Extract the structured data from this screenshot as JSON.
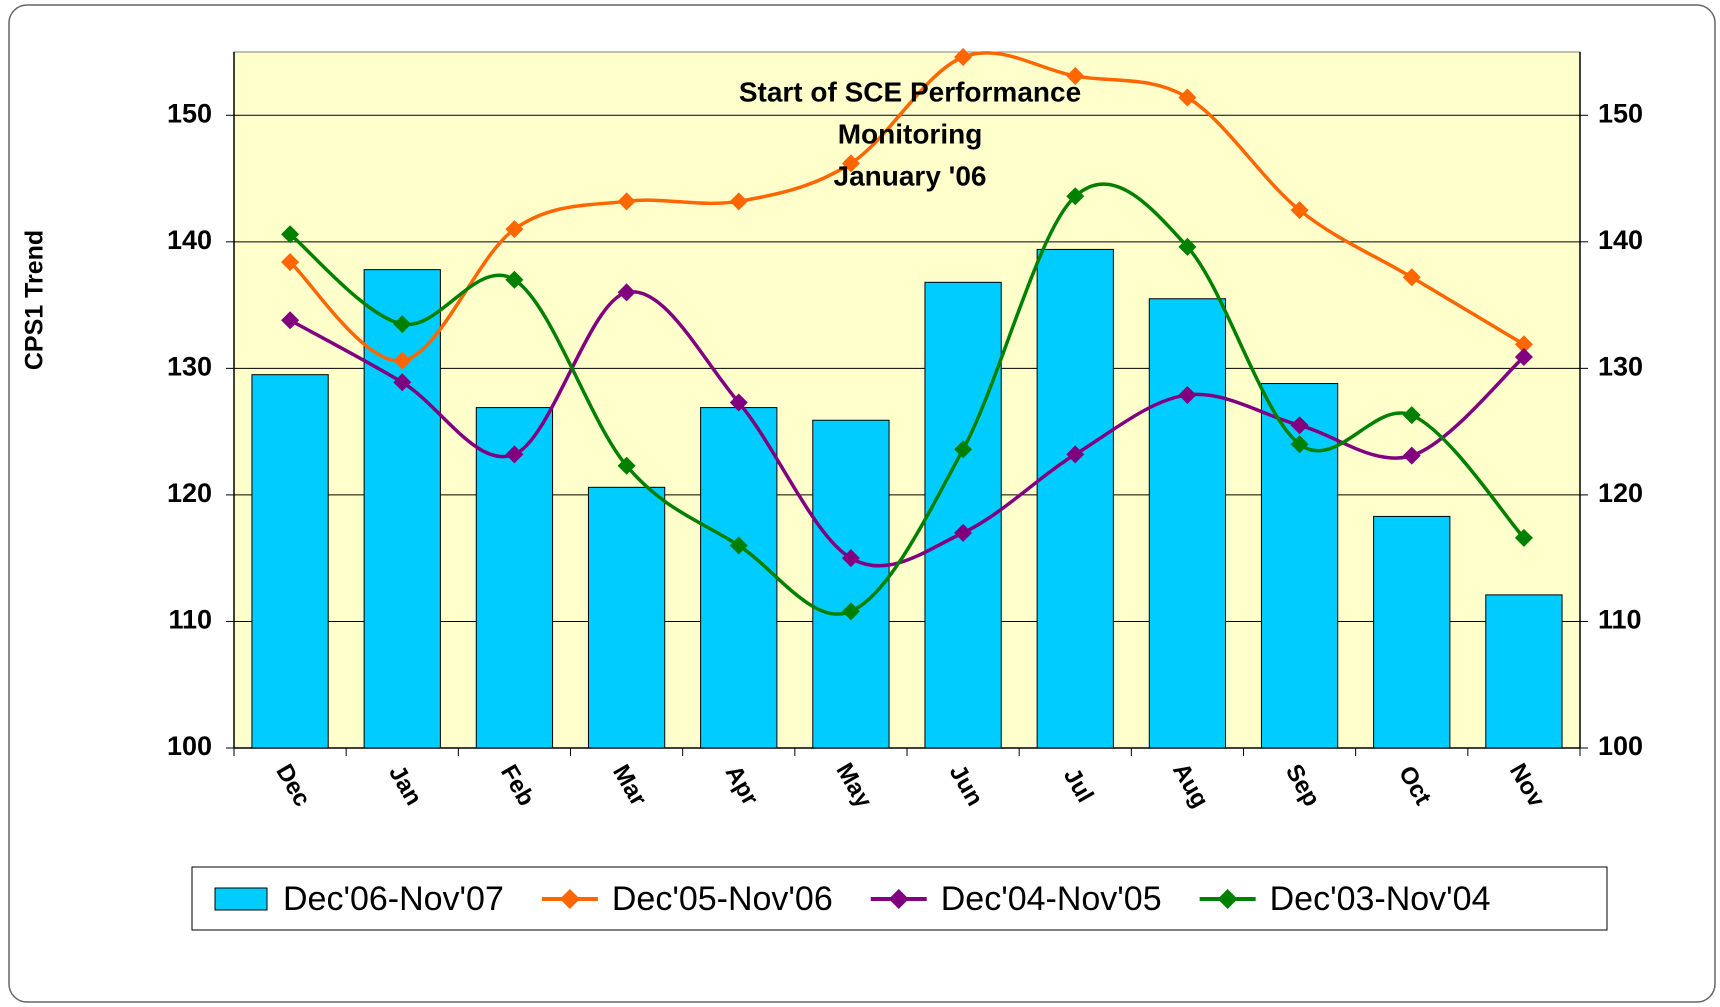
{
  "chart_data": {
    "type": "bar_line",
    "annotation": [
      "Start of SCE Performance",
      "Monitoring",
      "January '06"
    ],
    "ylabel": "CPS1 Trend",
    "categories": [
      "Dec",
      "Jan",
      "Feb",
      "Mar",
      "Apr",
      "May",
      "Jun",
      "Jul",
      "Aug",
      "Sep",
      "Oct",
      "Nov"
    ],
    "series": [
      {
        "name": "Dec'06-Nov'07",
        "type": "bar",
        "color": "#00ccff",
        "values": [
          129.5,
          137.8,
          126.9,
          120.6,
          126.9,
          125.9,
          136.8,
          139.4,
          135.5,
          128.8,
          118.3,
          112.1
        ]
      },
      {
        "name": "Dec'05-Nov'06",
        "type": "line",
        "color": "#ff6600",
        "values": [
          138.4,
          130.6,
          141.0,
          143.2,
          143.2,
          146.2,
          154.6,
          153.1,
          151.4,
          142.5,
          137.2,
          131.9
        ]
      },
      {
        "name": "Dec'04-Nov'05",
        "type": "line",
        "color": "#800080",
        "values": [
          133.8,
          128.9,
          123.2,
          136.0,
          127.3,
          115.0,
          117.0,
          123.2,
          127.9,
          125.5,
          123.1,
          130.9
        ]
      },
      {
        "name": "Dec'03-Nov'04",
        "type": "line",
        "color": "#008000",
        "values": [
          140.6,
          133.5,
          137.0,
          122.3,
          116.0,
          110.8,
          123.6,
          143.6,
          139.6,
          124.0,
          126.3,
          116.6
        ]
      }
    ],
    "ylim": [
      100,
      155
    ],
    "yticks": [
      100,
      110,
      120,
      130,
      140,
      150
    ],
    "y2lim": [
      100,
      155
    ],
    "y2ticks": [
      100,
      110,
      120,
      130,
      140,
      150
    ],
    "grid": true,
    "plot_background": "#ffffcc",
    "legend": "bottom"
  }
}
